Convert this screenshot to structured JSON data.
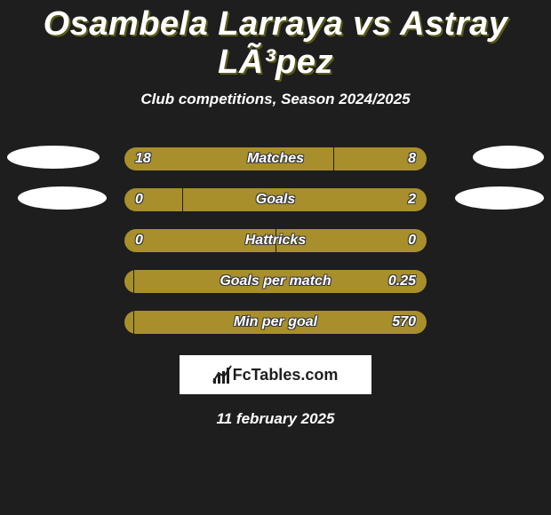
{
  "title": "Osambela Larraya vs Astray LÃ³pez",
  "subtitle": "Club competitions, Season 2024/2025",
  "date": "11 february 2025",
  "logo_text": "FcTables.com",
  "colors": {
    "bar_left": "#a88f2b",
    "bar_right": "#a88f2b",
    "background": "#1e1e1e",
    "oval": "#ffffff"
  },
  "rows": [
    {
      "label": "Matches",
      "left_value": "18",
      "right_value": "8",
      "left_pct": 69,
      "right_pct": 31,
      "left_oval_w": 104,
      "right_oval_w": 80,
      "show_ovals": true
    },
    {
      "label": "Goals",
      "left_value": "0",
      "right_value": "2",
      "left_pct": 19,
      "right_pct": 81,
      "left_oval_w": 100,
      "right_oval_w": 100,
      "show_ovals": true
    },
    {
      "label": "Hattricks",
      "left_value": "0",
      "right_value": "0",
      "left_pct": 50,
      "right_pct": 50,
      "left_oval_w": 0,
      "right_oval_w": 0,
      "show_ovals": false
    },
    {
      "label": "Goals per match",
      "left_value": "",
      "right_value": "0.25",
      "left_pct": 3,
      "right_pct": 97,
      "left_oval_w": 0,
      "right_oval_w": 0,
      "show_ovals": false
    },
    {
      "label": "Min per goal",
      "left_value": "",
      "right_value": "570",
      "left_pct": 3,
      "right_pct": 97,
      "left_oval_w": 0,
      "right_oval_w": 0,
      "show_ovals": false
    }
  ]
}
